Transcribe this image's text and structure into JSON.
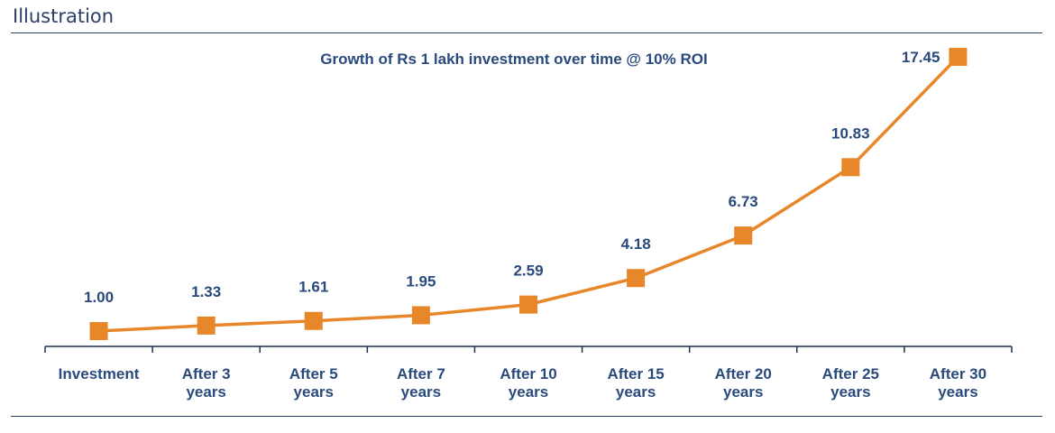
{
  "header": {
    "title": "Illustration"
  },
  "colors": {
    "line": "#e8862a",
    "text": "#2a4a7c",
    "axis": "#1f2f4f",
    "rule": "#2b3f66"
  },
  "chart_data": {
    "type": "line",
    "title": "Growth of Rs 1 lakh investment over time @ 10% ROI",
    "categories": [
      [
        "Investment"
      ],
      [
        "After 3",
        "years"
      ],
      [
        "After 5",
        "years"
      ],
      [
        "After 7",
        "years"
      ],
      [
        "After 10",
        "years"
      ],
      [
        "After 15",
        "years"
      ],
      [
        "After 20",
        "years"
      ],
      [
        "After 25",
        "years"
      ],
      [
        "After 30",
        "years"
      ]
    ],
    "values": [
      1.0,
      1.33,
      1.61,
      1.95,
      2.59,
      4.18,
      6.73,
      10.83,
      17.45
    ],
    "data_labels": [
      "1.00",
      "1.33",
      "1.61",
      "1.95",
      "2.59",
      "4.18",
      "6.73",
      "10.83",
      "17.45"
    ],
    "marker": "square",
    "xlabel": "",
    "ylabel": "",
    "ylim": [
      0,
      18
    ],
    "grid": false,
    "legend": "none"
  }
}
